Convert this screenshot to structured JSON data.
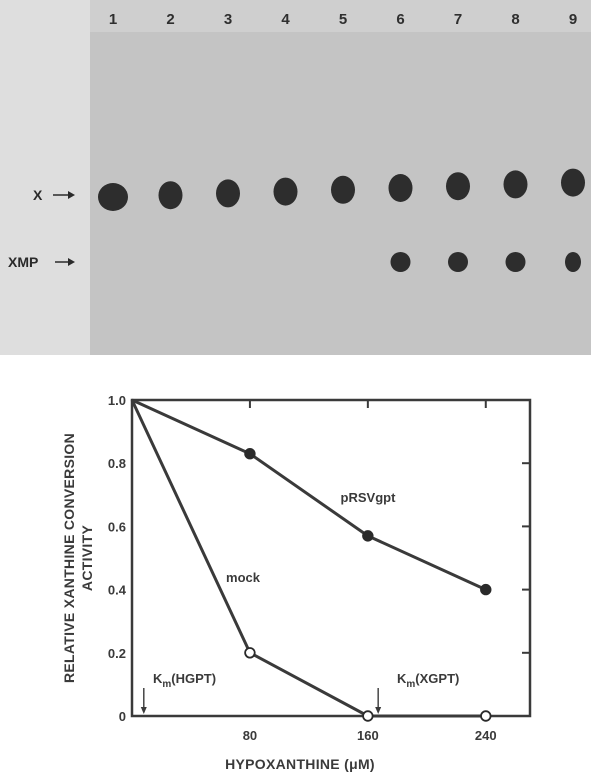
{
  "gel": {
    "lanes": [
      "1",
      "2",
      "3",
      "4",
      "5",
      "6",
      "7",
      "8",
      "9"
    ],
    "row_labels": {
      "x": "X",
      "xmp": "XMP"
    },
    "x_spot_lanes": [
      1,
      2,
      3,
      4,
      5,
      6,
      7,
      8,
      9
    ],
    "xmp_spot_lanes": [
      6,
      7,
      8,
      9
    ]
  },
  "chart_data": {
    "type": "line",
    "xlabel": "HYPOXANTHINE (μM)",
    "ylabel_lines": [
      "RELATIVE XANTHINE CONVERSION",
      "ACTIVITY"
    ],
    "xlim": [
      0,
      270
    ],
    "ylim": [
      0,
      1.0
    ],
    "xticks": [
      80,
      160,
      240
    ],
    "xtick_labels": [
      "80",
      "160",
      "240"
    ],
    "yticks": [
      0,
      0.2,
      0.4,
      0.6,
      0.8,
      1.0
    ],
    "ytick_labels": [
      "0",
      "0.2",
      "0.4",
      "0.6",
      "0.8",
      "1.0"
    ],
    "grid": false,
    "series": [
      {
        "name": "pRSVgpt",
        "marker": "filled",
        "x": [
          0,
          80,
          160,
          240
        ],
        "y": [
          1.0,
          0.83,
          0.57,
          0.4
        ]
      },
      {
        "name": "mock",
        "marker": "open",
        "x": [
          0,
          80,
          160,
          240
        ],
        "y": [
          1.0,
          0.2,
          0.0,
          0.0
        ]
      }
    ],
    "km_annotations": [
      {
        "main": "K",
        "sub": "m",
        "rest": "(HGPT)",
        "x": 8
      },
      {
        "main": "K",
        "sub": "m",
        "rest": "(XGPT)",
        "x": 167
      }
    ]
  }
}
